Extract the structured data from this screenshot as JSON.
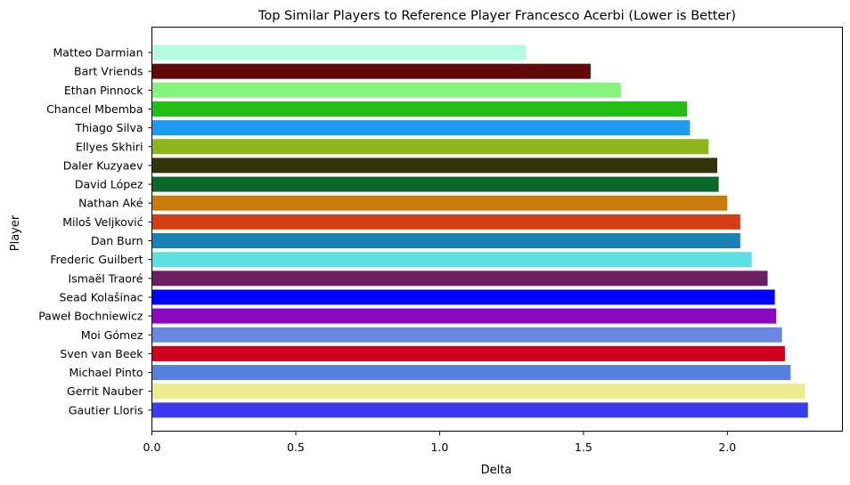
{
  "chart_data": {
    "type": "bar",
    "orientation": "horizontal",
    "title": "Top Similar Players to Reference Player Francesco Acerbi (Lower is Better)",
    "xlabel": "Delta",
    "ylabel": "Player",
    "xlim": [
      0,
      2.4
    ],
    "xticks": [
      0.0,
      0.5,
      1.0,
      1.5,
      2.0
    ],
    "xtick_labels": [
      "0.0",
      "0.5",
      "1.0",
      "1.5",
      "2.0"
    ],
    "grid": false,
    "legend": "none",
    "categories": [
      "Matteo Darmian",
      "Bart Vriends",
      "Ethan Pinnock",
      "Chancel Mbemba",
      "Thiago Silva",
      "Ellyes Skhiri",
      "Daler Kuzyaev",
      "David López",
      "Nathan Aké",
      "Miloš Veljković",
      "Dan Burn",
      "Frederic Guilbert",
      "Ismaël Traoré",
      "Sead Kolašinac",
      "Paweł Bochniewicz",
      "Moi Gómez",
      "Sven van Beek",
      "Michael Pinto",
      "Gerrit Nauber",
      "Gautier Lloris"
    ],
    "values": [
      1.3,
      1.525,
      1.63,
      1.86,
      1.87,
      1.935,
      1.965,
      1.97,
      2.0,
      2.045,
      2.045,
      2.085,
      2.14,
      2.165,
      2.17,
      2.19,
      2.2,
      2.22,
      2.27,
      2.28
    ],
    "colors": [
      "#b3fce0",
      "#620c0a",
      "#86f57e",
      "#24bd12",
      "#1d9bf2",
      "#8db51c",
      "#333407",
      "#0a6829",
      "#c97a0a",
      "#d43e15",
      "#1a80b5",
      "#5ce0e4",
      "#6e1f64",
      "#0000ff",
      "#8b07c2",
      "#6b88e0",
      "#d0001e",
      "#5580dc",
      "#ebeb90",
      "#3a3cee"
    ]
  }
}
